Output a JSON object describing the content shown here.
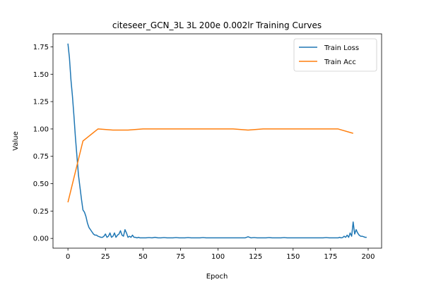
{
  "chart_data": {
    "type": "line",
    "title": "citeseer_GCN_3L  3L  200e  0.002lr  Training Curves",
    "xlabel": "Epoch",
    "ylabel": "Value",
    "xlim": [
      -9.95,
      208.95
    ],
    "ylim": [
      -0.089,
      1.869
    ],
    "xticks": [
      0,
      25,
      50,
      75,
      100,
      125,
      150,
      175,
      200
    ],
    "yticks": [
      0.0,
      0.25,
      0.5,
      0.75,
      1.0,
      1.25,
      1.5,
      1.75
    ],
    "ytick_labels": [
      "0.00",
      "0.25",
      "0.50",
      "0.75",
      "1.00",
      "1.25",
      "1.50",
      "1.75"
    ],
    "legend_position": "upper right",
    "grid": false,
    "series": [
      {
        "name": "Train Loss",
        "color": "#1f77b4",
        "x": [
          0,
          1,
          2,
          3,
          4,
          5,
          6,
          7,
          8,
          9,
          10,
          11,
          12,
          13,
          14,
          15,
          16,
          17,
          18,
          19,
          20,
          21,
          22,
          23,
          24,
          25,
          26,
          27,
          28,
          29,
          30,
          31,
          32,
          33,
          34,
          35,
          36,
          37,
          38,
          39,
          40,
          41,
          42,
          43,
          44,
          45,
          46,
          47,
          48,
          49,
          50,
          52,
          54,
          56,
          58,
          60,
          62,
          64,
          66,
          68,
          70,
          72,
          74,
          76,
          78,
          80,
          82,
          84,
          86,
          88,
          90,
          92,
          94,
          96,
          98,
          100,
          102,
          104,
          106,
          108,
          110,
          112,
          114,
          116,
          118,
          120,
          122,
          124,
          126,
          128,
          130,
          132,
          134,
          136,
          138,
          140,
          142,
          144,
          146,
          148,
          150,
          152,
          154,
          156,
          158,
          160,
          162,
          164,
          166,
          168,
          170,
          172,
          174,
          176,
          178,
          180,
          181,
          182,
          183,
          184,
          185,
          186,
          187,
          188,
          189,
          190,
          191,
          192,
          193,
          194,
          195,
          196,
          197,
          198,
          199
        ],
        "values": [
          1.78,
          1.65,
          1.45,
          1.3,
          1.12,
          0.92,
          0.75,
          0.58,
          0.47,
          0.36,
          0.26,
          0.24,
          0.2,
          0.14,
          0.1,
          0.08,
          0.06,
          0.04,
          0.03,
          0.03,
          0.02,
          0.015,
          0.01,
          0.01,
          0.02,
          0.04,
          0.01,
          0.02,
          0.05,
          0.01,
          0.02,
          0.05,
          0.01,
          0.03,
          0.04,
          0.07,
          0.03,
          0.02,
          0.08,
          0.05,
          0.01,
          0.02,
          0.01,
          0.03,
          0.01,
          0.01,
          0.005,
          0.01,
          0.005,
          0.005,
          0.005,
          0.005,
          0.008,
          0.005,
          0.01,
          0.005,
          0.005,
          0.008,
          0.005,
          0.005,
          0.005,
          0.008,
          0.005,
          0.005,
          0.005,
          0.008,
          0.005,
          0.005,
          0.005,
          0.005,
          0.008,
          0.005,
          0.005,
          0.005,
          0.005,
          0.005,
          0.005,
          0.005,
          0.005,
          0.005,
          0.005,
          0.005,
          0.005,
          0.005,
          0.005,
          0.015,
          0.005,
          0.008,
          0.005,
          0.005,
          0.005,
          0.005,
          0.008,
          0.005,
          0.005,
          0.005,
          0.005,
          0.008,
          0.005,
          0.005,
          0.005,
          0.005,
          0.005,
          0.005,
          0.005,
          0.005,
          0.005,
          0.005,
          0.005,
          0.005,
          0.005,
          0.008,
          0.005,
          0.005,
          0.005,
          0.005,
          0.01,
          0.005,
          0.008,
          0.02,
          0.01,
          0.03,
          0.01,
          0.05,
          0.02,
          0.15,
          0.04,
          0.08,
          0.05,
          0.03,
          0.02,
          0.02,
          0.015,
          0.01,
          0.01
        ]
      },
      {
        "name": "Train Acc",
        "color": "#ff7f0e",
        "x": [
          0,
          10,
          20,
          30,
          40,
          50,
          60,
          70,
          80,
          90,
          100,
          110,
          120,
          130,
          140,
          150,
          160,
          170,
          180,
          190
        ],
        "values": [
          0.33,
          0.89,
          1.0,
          0.99,
          0.99,
          1.0,
          1.0,
          1.0,
          1.0,
          1.0,
          1.0,
          1.0,
          0.99,
          1.0,
          1.0,
          1.0,
          1.0,
          1.0,
          1.0,
          0.96
        ]
      }
    ]
  }
}
